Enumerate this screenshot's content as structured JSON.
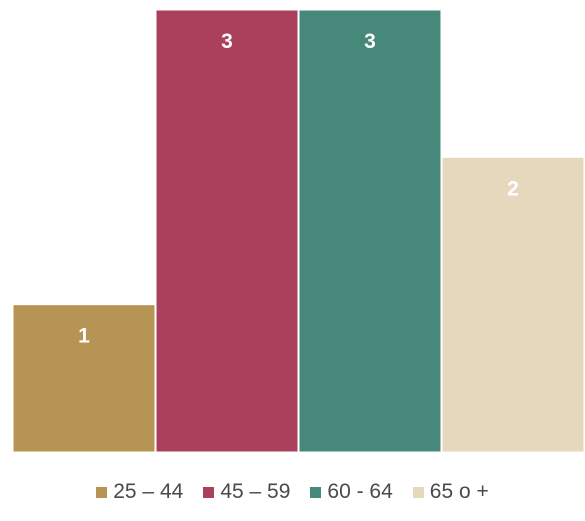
{
  "chart_data": {
    "type": "bar",
    "categories": [
      "25 – 44",
      "45 – 59",
      "60 - 64",
      "65 o +"
    ],
    "values": [
      1,
      3,
      3,
      2
    ],
    "data_labels": [
      "1",
      "3",
      "3",
      "2"
    ],
    "colors": [
      "#b59454",
      "#aa405b",
      "#468879",
      "#e6d8bd"
    ],
    "ylim": [
      0,
      3
    ],
    "grid": false,
    "legend_position": "bottom",
    "legend": [
      {
        "label": "25 – 44",
        "color": "#b59454"
      },
      {
        "label": "45 – 59",
        "color": "#aa405b"
      },
      {
        "label": "60 - 64",
        "color": "#468879"
      },
      {
        "label": "65 o +",
        "color": "#e6d8bd"
      }
    ]
  }
}
